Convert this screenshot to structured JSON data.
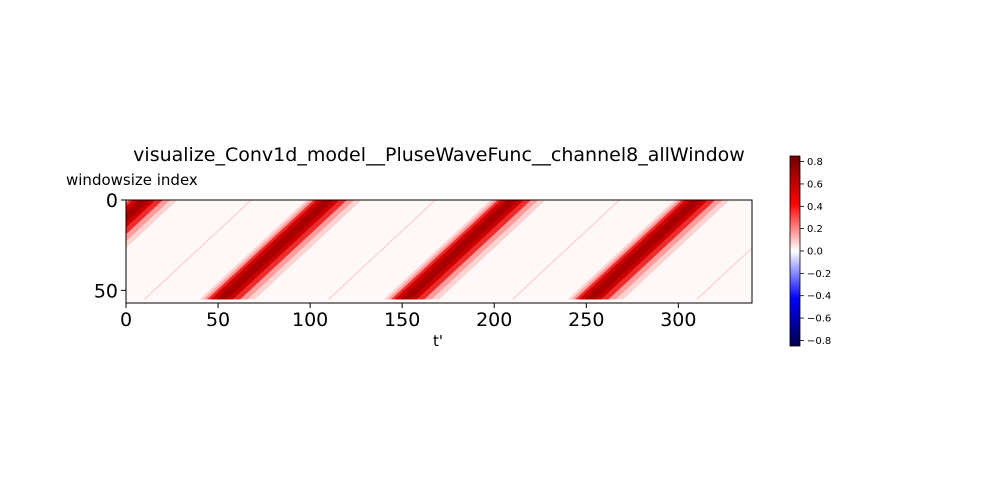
{
  "chart_data": {
    "type": "heatmap",
    "title": "visualize_Conv1d_model__PluseWaveFunc__channel8_allWindow",
    "xlabel": "t'",
    "ylabel": "windowsize index",
    "xlim": [
      0,
      340
    ],
    "ylim": [
      0,
      57
    ],
    "y_inverted": true,
    "x_ticks": [
      "0",
      "50",
      "100",
      "150",
      "200",
      "250",
      "300"
    ],
    "y_ticks": [
      "0",
      "50"
    ],
    "colormap": "seismic",
    "colorbar": {
      "range": [
        -0.85,
        0.85
      ],
      "ticks": [
        "0.8",
        "0.6",
        "0.4",
        "0.2",
        "0.0",
        "−0.2",
        "−0.4",
        "−0.6",
        "−0.8"
      ],
      "colors": {
        "negative_end": "#00004c",
        "low": "#0000ff",
        "mid": "#ffffff",
        "high": "#ff0000",
        "positive_end": "#800000"
      }
    },
    "bands": [
      {
        "x_at_top": 20,
        "x_at_bottom": -38
      },
      {
        "x_at_top": 120,
        "x_at_bottom": 62
      },
      {
        "x_at_top": 220,
        "x_at_bottom": 162
      },
      {
        "x_at_top": 320,
        "x_at_bottom": 262
      }
    ],
    "band_peak_value": 0.8
  }
}
